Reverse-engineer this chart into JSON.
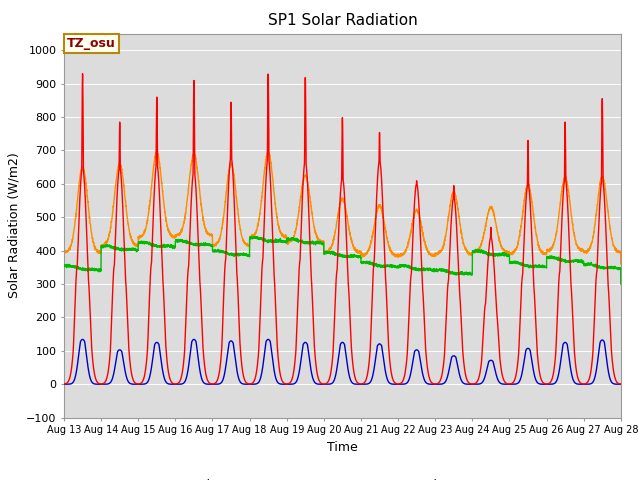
{
  "title": "SP1 Solar Radiation",
  "xlabel": "Time",
  "ylabel": "Solar Radiation (W/m2)",
  "ylim": [
    -100,
    1050
  ],
  "yticks": [
    -100,
    0,
    100,
    200,
    300,
    400,
    500,
    600,
    700,
    800,
    900,
    1000
  ],
  "x_tick_labels": [
    "Aug 13",
    "Aug 14",
    "Aug 15",
    "Aug 16",
    "Aug 17",
    "Aug 18",
    "Aug 19",
    "Aug 20",
    "Aug 21",
    "Aug 22",
    "Aug 23",
    "Aug 24",
    "Aug 25",
    "Aug 26",
    "Aug 27",
    "Aug 28"
  ],
  "colors": {
    "SWin": "#FF0000",
    "SWout": "#0000CC",
    "LWin": "#00BB00",
    "LWout": "#FF8C00"
  },
  "bg_color": "#DCDCDC",
  "annotation_text": "TZ_osu",
  "annotation_color": "#8B0000",
  "annotation_bg": "#FFFFF0",
  "annotation_border": "#B8860B",
  "n_days": 15,
  "pts_per_day": 288,
  "sw_spike_peaks": [
    930,
    785,
    860,
    910,
    845,
    930,
    920,
    800,
    755,
    610,
    595,
    470,
    730,
    785,
    855
  ],
  "sw_broad_peaks": [
    650,
    650,
    660,
    640,
    680,
    680,
    670,
    620,
    670,
    600,
    560,
    440,
    600,
    615,
    615
  ],
  "swout_peaks": [
    150,
    115,
    140,
    150,
    145,
    150,
    140,
    140,
    135,
    115,
    95,
    80,
    120,
    140,
    148
  ],
  "lwin_base": [
    350,
    410,
    420,
    425,
    395,
    435,
    430,
    390,
    360,
    350,
    338,
    395,
    360,
    375,
    355
  ],
  "lwout_peak": [
    650,
    660,
    695,
    690,
    660,
    695,
    625,
    555,
    535,
    520,
    575,
    530,
    595,
    620,
    620
  ],
  "lwout_base": [
    395,
    415,
    440,
    445,
    415,
    440,
    425,
    395,
    385,
    385,
    390,
    395,
    390,
    400,
    395
  ]
}
